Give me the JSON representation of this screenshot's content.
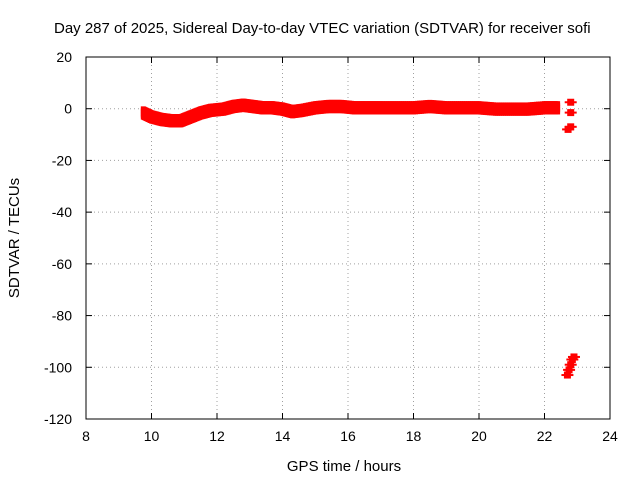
{
  "chart_data": {
    "type": "scatter",
    "title": "Day 287 of 2025, Sidereal Day-to-day VTEC variation (SDTVAR) for receiver sofi",
    "xlabel": "GPS time / hours",
    "ylabel": "SDTVAR / TECUs",
    "xlim": [
      8,
      24
    ],
    "ylim": [
      -120,
      20
    ],
    "x_ticks": [
      "8",
      "10",
      "12",
      "14",
      "16",
      "18",
      "20",
      "22",
      "24"
    ],
    "y_ticks": [
      "20",
      "0",
      "-20",
      "-40",
      "-60",
      "-80",
      "-100",
      "-120"
    ],
    "grid": true,
    "series": [
      {
        "color": "#ff0000",
        "main_band": [
          [
            9.75,
            -1.5
          ],
          [
            10.0,
            -3.0
          ],
          [
            10.3,
            -4.0
          ],
          [
            10.6,
            -4.5
          ],
          [
            10.9,
            -4.5
          ],
          [
            11.2,
            -3.0
          ],
          [
            11.5,
            -1.5
          ],
          [
            11.8,
            -0.5
          ],
          [
            12.2,
            0.0
          ],
          [
            12.5,
            1.0
          ],
          [
            12.8,
            1.5
          ],
          [
            13.1,
            1.0
          ],
          [
            13.4,
            0.5
          ],
          [
            13.7,
            0.5
          ],
          [
            14.0,
            0.0
          ],
          [
            14.3,
            -1.0
          ],
          [
            14.6,
            -0.5
          ],
          [
            15.0,
            0.5
          ],
          [
            15.4,
            1.0
          ],
          [
            15.8,
            1.0
          ],
          [
            16.2,
            0.5
          ],
          [
            16.6,
            0.5
          ],
          [
            17.0,
            0.5
          ],
          [
            17.5,
            0.5
          ],
          [
            18.0,
            0.5
          ],
          [
            18.5,
            1.0
          ],
          [
            19.0,
            0.5
          ],
          [
            19.5,
            0.5
          ],
          [
            20.0,
            0.5
          ],
          [
            20.5,
            0.0
          ],
          [
            21.0,
            0.0
          ],
          [
            21.5,
            0.0
          ],
          [
            22.0,
            0.5
          ],
          [
            22.4,
            0.5
          ]
        ],
        "band_thickness": 3.5,
        "late_points": [
          [
            22.8,
            2.5
          ],
          [
            22.8,
            -1.5
          ],
          [
            22.8,
            -7.0
          ],
          [
            22.72,
            -8.0
          ],
          [
            22.7,
            -103
          ],
          [
            22.75,
            -101
          ],
          [
            22.8,
            -99
          ],
          [
            22.85,
            -97
          ],
          [
            22.9,
            -96
          ]
        ]
      }
    ]
  }
}
